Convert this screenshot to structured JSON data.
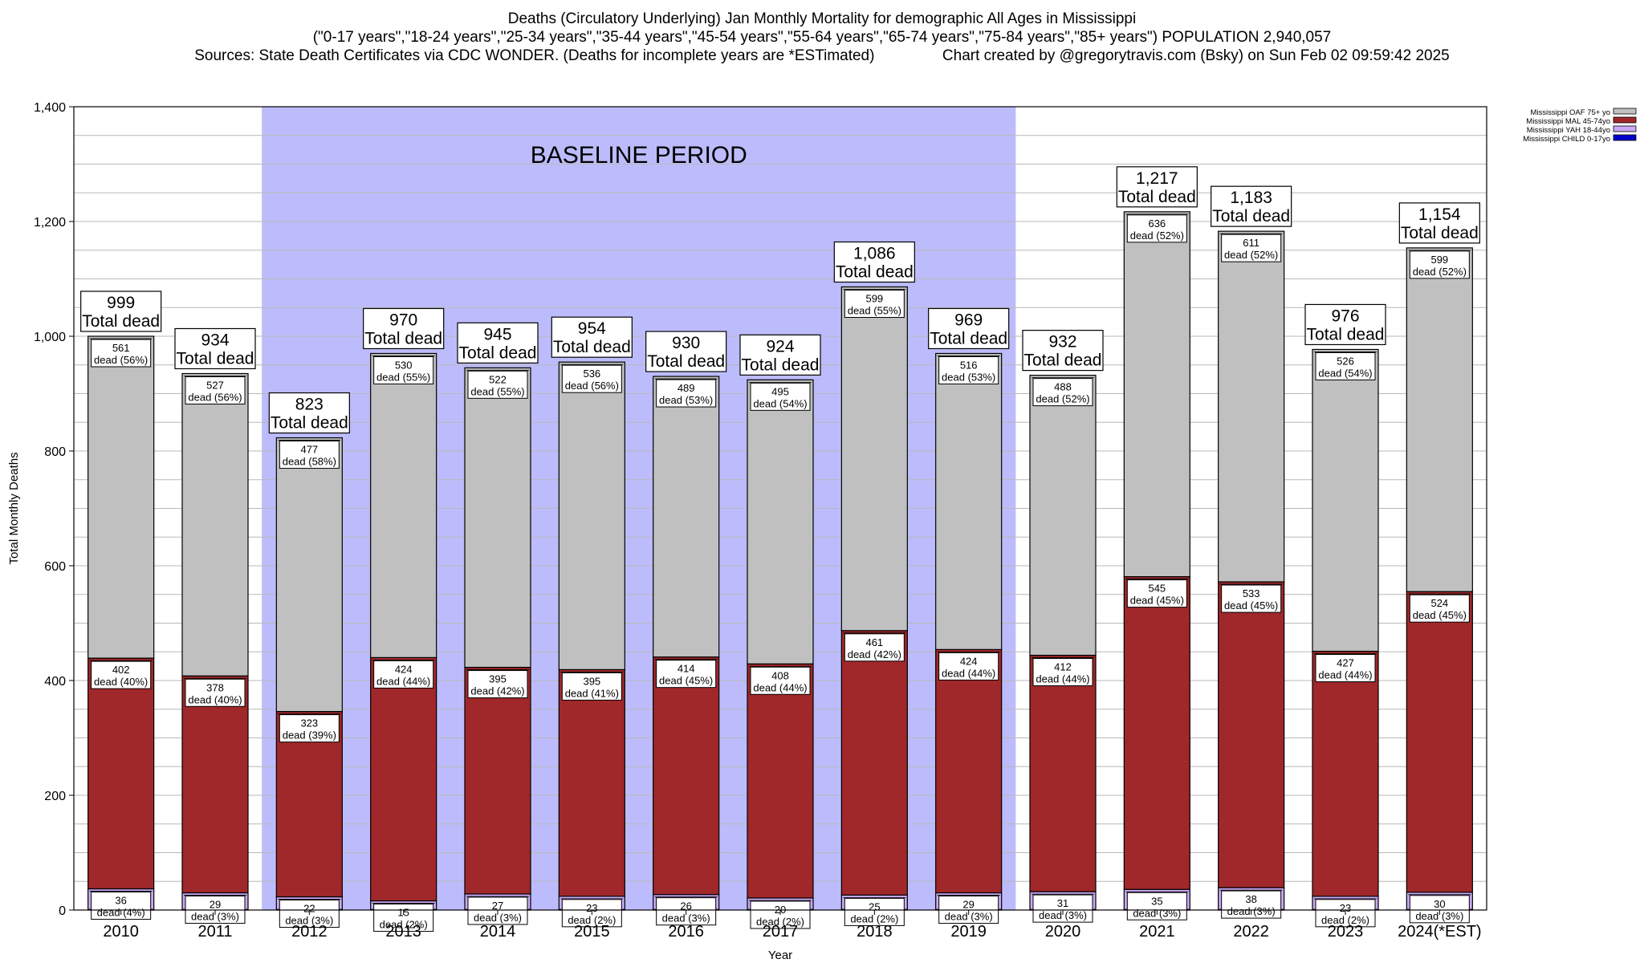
{
  "title": {
    "line1": "Deaths (Circulatory Underlying) Jan Monthly Mortality for demographic All Ages in Mississippi",
    "line2": "(\"0-17 years\",\"18-24 years\",\"25-34 years\",\"35-44 years\",\"45-54 years\",\"55-64 years\",\"65-74 years\",\"75-84 years\",\"85+ years\") POPULATION 2,940,057",
    "line3": "Sources: State Death Certificates via CDC WONDER. (Deaths for incomplete years are *ESTimated)                Chart created by @gregorytravis.com (Bsky) on Sun Feb 02 09:59:42 2025"
  },
  "chart_data": {
    "type": "bar",
    "stacked": true,
    "xlabel": "Year",
    "ylabel": "Total Monthly Deaths",
    "ylim": [
      0,
      1400
    ],
    "yticks": [
      "0",
      "200",
      "400",
      "600",
      "800",
      "1,000",
      "1,200",
      "1,400"
    ],
    "grid": true,
    "legend_position": "top-right",
    "baseline": {
      "label": "BASELINE PERIOD",
      "from": "2012",
      "to": "2019"
    },
    "total_suffix": "Total dead",
    "categories": [
      "2010",
      "2011",
      "2012",
      "2013",
      "2014",
      "2015",
      "2016",
      "2017",
      "2018",
      "2019",
      "2020",
      "2021",
      "2022",
      "2023",
      "2024(*EST)"
    ],
    "totals": [
      "999",
      "934",
      "823",
      "970",
      "945",
      "954",
      "930",
      "924",
      "1,086",
      "969",
      "932",
      "1,217",
      "1,183",
      "976",
      "1,154"
    ],
    "series": [
      {
        "name": "Mississippi CHILD 0-17yo",
        "color": "#0000cc",
        "values": [
          1,
          1,
          1,
          1,
          1,
          1,
          1,
          1,
          1,
          1,
          1,
          1,
          1,
          1,
          1
        ],
        "labels": []
      },
      {
        "name": "Mississippi YAH 18-44yo",
        "color": "#c9a9f5",
        "values": [
          36,
          29,
          22,
          15,
          27,
          23,
          26,
          20,
          25,
          29,
          31,
          35,
          38,
          23,
          30
        ],
        "labels": [
          "36",
          "29",
          "22",
          "15",
          "27",
          "23",
          "26",
          "20",
          "25",
          "29",
          "31",
          "35",
          "38",
          "23",
          "30"
        ],
        "pct": [
          "dead (4%)",
          "dead (3%)",
          "dead (3%)",
          "dead (2%)",
          "dead (3%)",
          "dead (2%)",
          "dead (3%)",
          "dead (2%)",
          "dead (2%)",
          "dead (3%)",
          "dead (3%)",
          "dead (3%)",
          "dead (3%)",
          "dead (2%)",
          "dead (3%)"
        ]
      },
      {
        "name": "Mississippi MAL 45-74yo",
        "color": "#a0282a",
        "values": [
          402,
          378,
          323,
          424,
          395,
          395,
          414,
          408,
          461,
          424,
          412,
          545,
          533,
          427,
          524
        ],
        "labels": [
          "402",
          "378",
          "323",
          "424",
          "395",
          "395",
          "414",
          "408",
          "461",
          "424",
          "412",
          "545",
          "533",
          "427",
          "524"
        ],
        "pct": [
          "dead (40%)",
          "dead (40%)",
          "dead (39%)",
          "dead (44%)",
          "dead (42%)",
          "dead (41%)",
          "dead (45%)",
          "dead (44%)",
          "dead (42%)",
          "dead (44%)",
          "dead (44%)",
          "dead (45%)",
          "dead (45%)",
          "dead (44%)",
          "dead (45%)"
        ]
      },
      {
        "name": "Mississippi OAF 75+ yo",
        "color": "#c0c0c0",
        "values": [
          561,
          527,
          477,
          530,
          522,
          536,
          489,
          495,
          599,
          516,
          488,
          636,
          611,
          526,
          599
        ],
        "labels": [
          "561",
          "527",
          "477",
          "530",
          "522",
          "536",
          "489",
          "495",
          "599",
          "516",
          "488",
          "636",
          "611",
          "526",
          "599"
        ],
        "pct": [
          "dead (56%)",
          "dead (56%)",
          "dead (58%)",
          "dead (55%)",
          "dead (55%)",
          "dead (56%)",
          "dead (53%)",
          "dead (54%)",
          "dead (55%)",
          "dead (53%)",
          "dead (52%)",
          "dead (52%)",
          "dead (52%)",
          "dead (54%)",
          "dead (52%)"
        ]
      }
    ]
  }
}
